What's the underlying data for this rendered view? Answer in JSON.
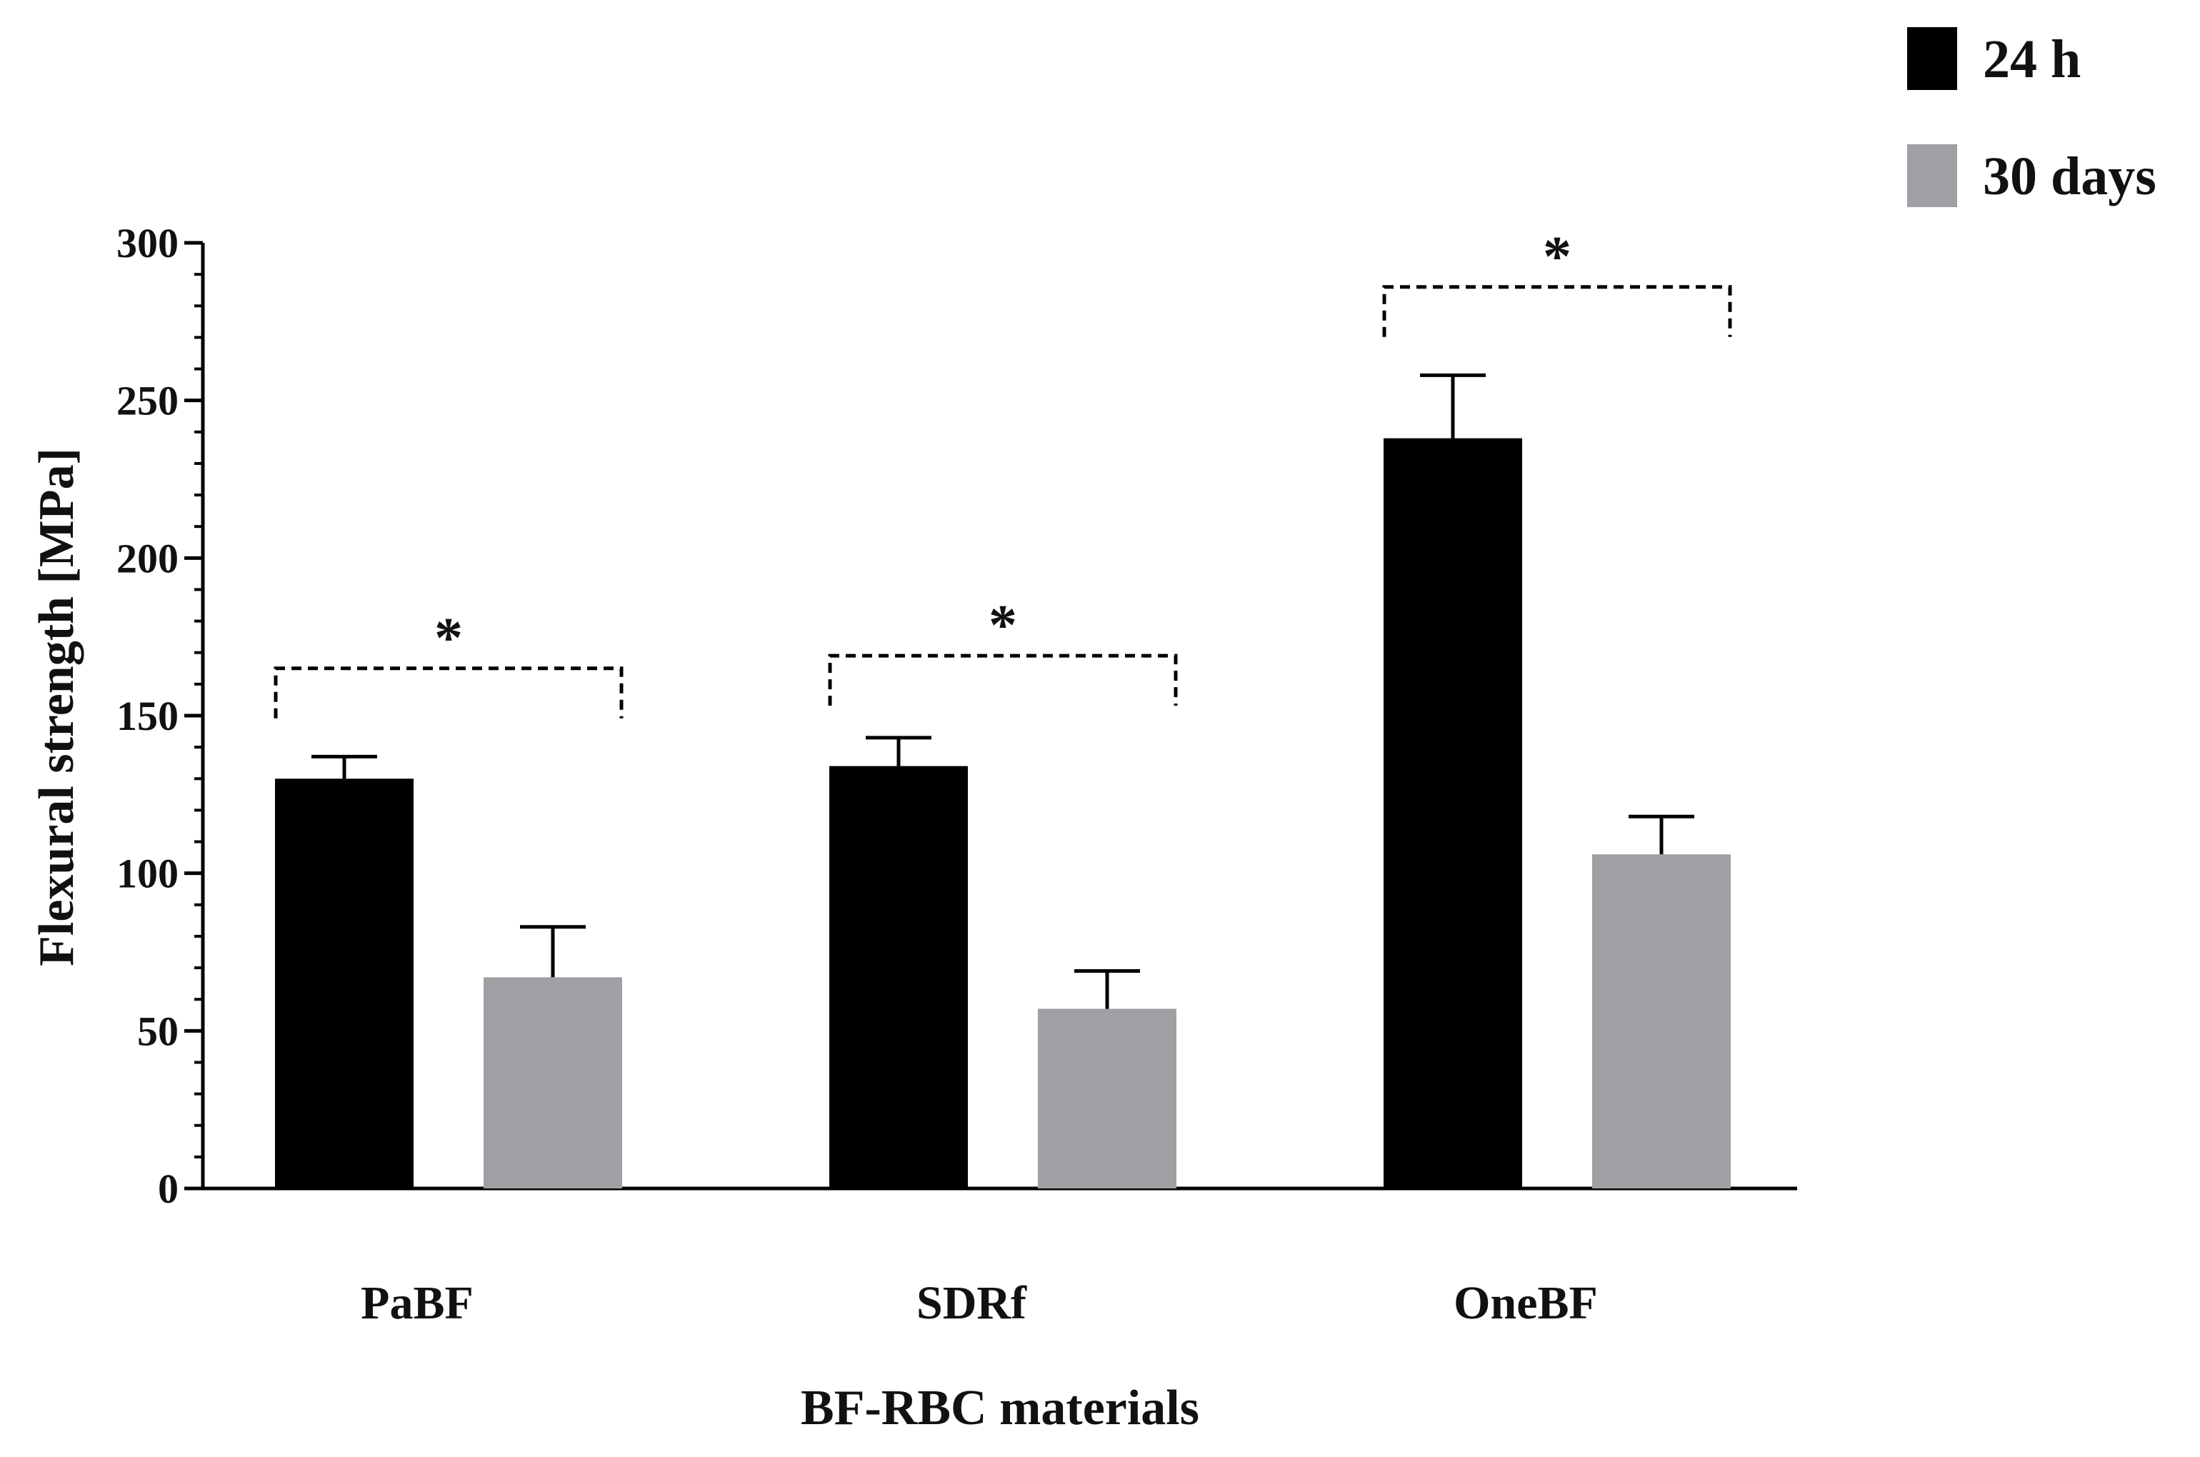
{
  "chart_data": {
    "type": "bar",
    "title": "",
    "xlabel": "BF-RBC materials",
    "ylabel": "Flexural strength [MPa]",
    "ylim": [
      0,
      300
    ],
    "yticks": [
      0,
      50,
      100,
      150,
      200,
      250,
      300
    ],
    "categories": [
      "PaBF",
      "SDRf",
      "OneBF"
    ],
    "series": [
      {
        "name": "24 h",
        "color": "#000000",
        "values": [
          130,
          134,
          238
        ],
        "errors": [
          7,
          9,
          20
        ]
      },
      {
        "name": "30 days",
        "color": "#a0a0a4",
        "values": [
          67,
          57,
          106
        ],
        "errors": [
          16,
          12,
          12
        ]
      }
    ],
    "significance": [
      {
        "category": "PaBF",
        "label": "*",
        "bracket_value": 165
      },
      {
        "category": "SDRf",
        "label": "*",
        "bracket_value": 169
      },
      {
        "category": "OneBF",
        "label": "*",
        "bracket_value": 286
      }
    ],
    "legend_position": "top-right",
    "grid": false
  }
}
